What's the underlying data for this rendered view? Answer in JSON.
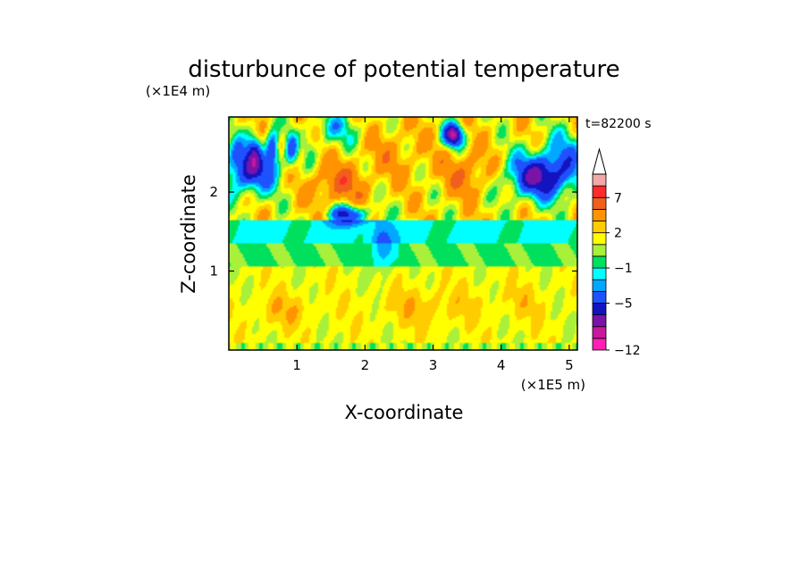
{
  "chart_data": {
    "type": "heatmap",
    "title": "disturbunce of potential temperature",
    "xlabel": "X-coordinate",
    "ylabel": "Z-coordinate",
    "x_scale_label": "(×1E5 m)",
    "y_scale_label": "(×1E4 m)",
    "time_label": "t=82200 s",
    "xlim": [
      0,
      5.12
    ],
    "ylim": [
      0,
      2.95
    ],
    "x_ticks": [
      "1",
      "2",
      "3",
      "4",
      "5"
    ],
    "y_ticks": [
      "1",
      "2"
    ],
    "colorbar": {
      "levels": [
        -12,
        -11,
        -9,
        -7,
        -5,
        -3,
        -2,
        -1,
        0,
        1,
        2,
        3,
        5,
        7,
        9,
        12
      ],
      "tick_labels": [
        "-12",
        "-5",
        "-1",
        "2",
        "7"
      ],
      "colors": [
        "#ff1fb4",
        "#c8189e",
        "#7a13a8",
        "#1313c0",
        "#1f52ff",
        "#00a8ff",
        "#00ffff",
        "#00e05c",
        "#a8f03a",
        "#ffff00",
        "#ffcc00",
        "#ff9300",
        "#f0601a",
        "#ff2a2a",
        "#f3a8a8"
      ],
      "extend_max_color": "#ffffff"
    },
    "features": [
      {
        "x": 0.3,
        "z": 2.3,
        "value": -5
      },
      {
        "x": 0.7,
        "z": 2.55,
        "value": -4
      },
      {
        "x": 1.6,
        "z": 2.1,
        "value": 5
      },
      {
        "x": 1.75,
        "z": 1.7,
        "value": -5
      },
      {
        "x": 2.45,
        "z": 2.5,
        "value": 3
      },
      {
        "x": 3.3,
        "z": 2.7,
        "value": -9
      },
      {
        "x": 3.5,
        "z": 2.25,
        "value": 5
      },
      {
        "x": 4.6,
        "z": 2.2,
        "value": -6
      },
      {
        "x": 2.25,
        "z": 1.3,
        "value": -2
      },
      {
        "x": 0.8,
        "z": 0.5,
        "value": 2.5
      },
      {
        "x": 2.9,
        "z": 0.55,
        "value": 2.5
      },
      {
        "x": 4.3,
        "z": 0.6,
        "value": 2
      }
    ]
  }
}
